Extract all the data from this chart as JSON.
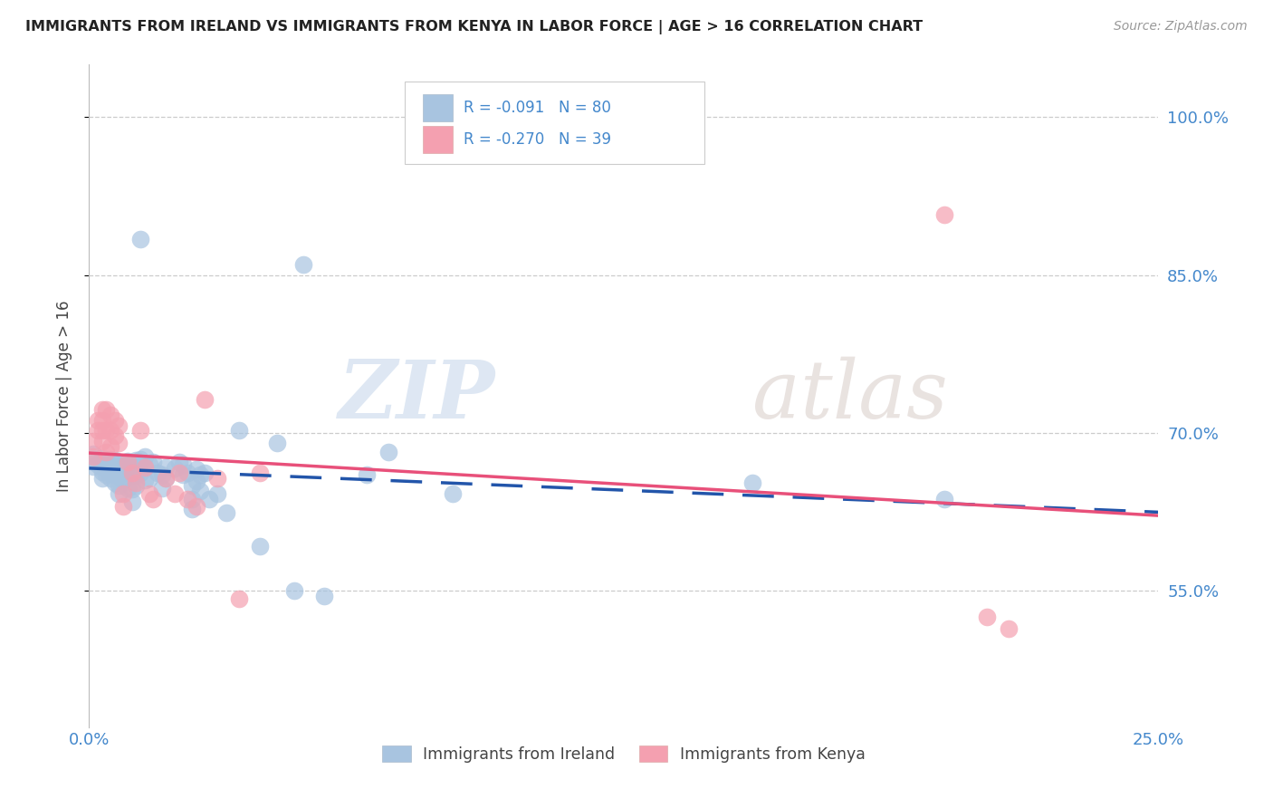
{
  "title": "IMMIGRANTS FROM IRELAND VS IMMIGRANTS FROM KENYA IN LABOR FORCE | AGE > 16 CORRELATION CHART",
  "source": "Source: ZipAtlas.com",
  "xlabel_ticks": [
    "0.0%",
    "25.0%"
  ],
  "ylabel_label": "In Labor Force | Age > 16",
  "ylabel_ticks": [
    "55.0%",
    "70.0%",
    "85.0%",
    "100.0%"
  ],
  "xlim": [
    0.0,
    0.25
  ],
  "ylim": [
    0.42,
    1.05
  ],
  "yticks": [
    0.55,
    0.7,
    0.85,
    1.0
  ],
  "xticks": [
    0.0,
    0.25
  ],
  "ireland_R": -0.091,
  "ireland_N": 80,
  "kenya_R": -0.27,
  "kenya_N": 39,
  "ireland_color": "#a8c4e0",
  "kenya_color": "#f4a0b0",
  "ireland_line_color": "#2255aa",
  "kenya_line_color": "#e8507a",
  "watermark_zip": "ZIP",
  "watermark_atlas": "atlas",
  "background_color": "#ffffff",
  "grid_color": "#cccccc",
  "axis_label_color": "#4488cc",
  "legend_text_color": "#4488cc",
  "title_color": "#222222",
  "ylabel_color": "#444444",
  "ireland_scatter": [
    [
      0.001,
      0.68
    ],
    [
      0.001,
      0.668
    ],
    [
      0.002,
      0.67
    ],
    [
      0.002,
      0.675
    ],
    [
      0.003,
      0.663
    ],
    [
      0.003,
      0.671
    ],
    [
      0.003,
      0.676
    ],
    [
      0.003,
      0.657
    ],
    [
      0.004,
      0.666
    ],
    [
      0.004,
      0.66
    ],
    [
      0.004,
      0.672
    ],
    [
      0.004,
      0.665
    ],
    [
      0.005,
      0.669
    ],
    [
      0.005,
      0.662
    ],
    [
      0.005,
      0.657
    ],
    [
      0.005,
      0.675
    ],
    [
      0.006,
      0.674
    ],
    [
      0.006,
      0.66
    ],
    [
      0.006,
      0.652
    ],
    [
      0.006,
      0.667
    ],
    [
      0.007,
      0.672
    ],
    [
      0.007,
      0.665
    ],
    [
      0.007,
      0.659
    ],
    [
      0.007,
      0.65
    ],
    [
      0.007,
      0.642
    ],
    [
      0.008,
      0.67
    ],
    [
      0.008,
      0.662
    ],
    [
      0.008,
      0.655
    ],
    [
      0.009,
      0.673
    ],
    [
      0.009,
      0.664
    ],
    [
      0.009,
      0.647
    ],
    [
      0.01,
      0.671
    ],
    [
      0.01,
      0.66
    ],
    [
      0.01,
      0.646
    ],
    [
      0.01,
      0.634
    ],
    [
      0.011,
      0.674
    ],
    [
      0.011,
      0.668
    ],
    [
      0.011,
      0.659
    ],
    [
      0.011,
      0.65
    ],
    [
      0.012,
      0.675
    ],
    [
      0.012,
      0.662
    ],
    [
      0.013,
      0.677
    ],
    [
      0.013,
      0.667
    ],
    [
      0.013,
      0.655
    ],
    [
      0.014,
      0.67
    ],
    [
      0.014,
      0.657
    ],
    [
      0.015,
      0.672
    ],
    [
      0.016,
      0.662
    ],
    [
      0.017,
      0.66
    ],
    [
      0.017,
      0.647
    ],
    [
      0.018,
      0.667
    ],
    [
      0.018,
      0.657
    ],
    [
      0.02,
      0.666
    ],
    [
      0.021,
      0.672
    ],
    [
      0.022,
      0.67
    ],
    [
      0.022,
      0.66
    ],
    [
      0.023,
      0.662
    ],
    [
      0.024,
      0.65
    ],
    [
      0.024,
      0.637
    ],
    [
      0.024,
      0.627
    ],
    [
      0.025,
      0.665
    ],
    [
      0.025,
      0.654
    ],
    [
      0.026,
      0.66
    ],
    [
      0.026,
      0.645
    ],
    [
      0.027,
      0.662
    ],
    [
      0.028,
      0.637
    ],
    [
      0.03,
      0.642
    ],
    [
      0.032,
      0.624
    ],
    [
      0.035,
      0.702
    ],
    [
      0.04,
      0.592
    ],
    [
      0.044,
      0.69
    ],
    [
      0.048,
      0.55
    ],
    [
      0.05,
      0.86
    ],
    [
      0.055,
      0.545
    ],
    [
      0.065,
      0.66
    ],
    [
      0.085,
      0.642
    ],
    [
      0.012,
      0.884
    ],
    [
      0.07,
      0.682
    ],
    [
      0.155,
      0.652
    ],
    [
      0.2,
      0.637
    ]
  ],
  "kenya_scatter": [
    [
      0.001,
      0.692
    ],
    [
      0.001,
      0.677
    ],
    [
      0.002,
      0.712
    ],
    [
      0.002,
      0.702
    ],
    [
      0.003,
      0.722
    ],
    [
      0.003,
      0.712
    ],
    [
      0.003,
      0.702
    ],
    [
      0.003,
      0.692
    ],
    [
      0.004,
      0.722
    ],
    [
      0.004,
      0.702
    ],
    [
      0.004,
      0.682
    ],
    [
      0.005,
      0.717
    ],
    [
      0.005,
      0.702
    ],
    [
      0.005,
      0.687
    ],
    [
      0.006,
      0.712
    ],
    [
      0.006,
      0.697
    ],
    [
      0.007,
      0.707
    ],
    [
      0.007,
      0.69
    ],
    [
      0.008,
      0.642
    ],
    [
      0.008,
      0.63
    ],
    [
      0.009,
      0.672
    ],
    [
      0.01,
      0.662
    ],
    [
      0.011,
      0.652
    ],
    [
      0.012,
      0.702
    ],
    [
      0.013,
      0.667
    ],
    [
      0.014,
      0.642
    ],
    [
      0.015,
      0.637
    ],
    [
      0.018,
      0.657
    ],
    [
      0.02,
      0.642
    ],
    [
      0.021,
      0.662
    ],
    [
      0.023,
      0.637
    ],
    [
      0.025,
      0.63
    ],
    [
      0.027,
      0.732
    ],
    [
      0.03,
      0.657
    ],
    [
      0.035,
      0.542
    ],
    [
      0.04,
      0.662
    ],
    [
      0.2,
      0.907
    ],
    [
      0.21,
      0.525
    ],
    [
      0.215,
      0.514
    ]
  ]
}
